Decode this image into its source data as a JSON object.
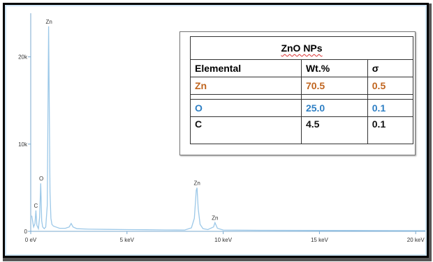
{
  "chart_data": {
    "type": "line",
    "title": "",
    "xlabel": "",
    "ylabel": "",
    "xlim": [
      0,
      20.5
    ],
    "ylim": [
      0,
      25000
    ],
    "x_ticks": [
      {
        "value": 0,
        "label": "0 eV"
      },
      {
        "value": 5,
        "label": "5 keV"
      },
      {
        "value": 10,
        "label": "10 keV"
      },
      {
        "value": 15,
        "label": "15 keV"
      },
      {
        "value": 20,
        "label": "20 keV"
      }
    ],
    "y_ticks": [
      {
        "value": 0,
        "label": "0"
      },
      {
        "value": 10000,
        "label": "10k"
      },
      {
        "value": 20000,
        "label": "20k"
      }
    ],
    "series": [
      {
        "color": "#9cc8e8",
        "x": [
          0.05,
          0.15,
          0.22,
          0.27,
          0.32,
          0.4,
          0.46,
          0.52,
          0.57,
          0.62,
          0.7,
          0.78,
          0.86,
          0.93,
          1.0,
          1.05,
          1.1,
          1.18,
          1.3,
          1.5,
          1.8,
          2.0,
          2.1,
          2.2,
          2.4,
          3.0,
          4.0,
          5.0,
          6.0,
          7.0,
          8.0,
          8.35,
          8.5,
          8.6,
          8.64,
          8.7,
          8.8,
          8.95,
          9.2,
          9.5,
          9.57,
          9.7,
          10.0,
          12.0,
          15.0,
          18.0,
          20.5
        ],
        "y": [
          1800,
          500,
          900,
          2400,
          700,
          300,
          1600,
          5500,
          1200,
          500,
          300,
          500,
          3000,
          23500,
          4500,
          1500,
          800,
          600,
          500,
          350,
          350,
          500,
          900,
          500,
          300,
          250,
          220,
          200,
          180,
          160,
          150,
          400,
          1500,
          4700,
          5000,
          2600,
          800,
          300,
          200,
          500,
          1000,
          350,
          150,
          120,
          100,
          90,
          80
        ]
      }
    ],
    "peak_labels": [
      {
        "text": "Zn",
        "x": 0.95,
        "y": 23500
      },
      {
        "text": "O",
        "x": 0.55,
        "y": 5500
      },
      {
        "text": "C",
        "x": 0.27,
        "y": 2400
      },
      {
        "text": "Zn",
        "x": 8.64,
        "y": 5000
      },
      {
        "text": "Zn",
        "x": 9.57,
        "y": 1000
      }
    ],
    "grid": false
  },
  "table": {
    "title": "ZnO NPs",
    "headers": [
      "Elemental",
      "Wt.%",
      "σ"
    ],
    "rows": [
      {
        "element": "Zn",
        "wt": "70.5",
        "sigma": "0.5",
        "color": "#c0651f"
      },
      {
        "element": "O",
        "wt": "25.0",
        "sigma": "0.1",
        "color": "#2e7fc4"
      },
      {
        "element": "C",
        "wt": "4.5",
        "sigma": "0.1",
        "color": "#111111"
      }
    ]
  }
}
